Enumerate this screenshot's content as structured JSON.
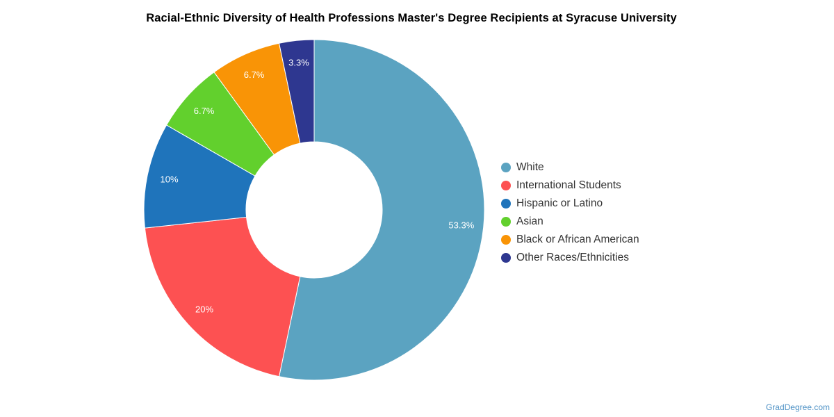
{
  "chart_data": {
    "type": "pie",
    "title": "Racial-Ethnic Diversity of Health Professions Master's Degree Recipients at Syracuse University",
    "legend_position": "right",
    "donut": true,
    "slices": [
      {
        "name": "White",
        "value": 53.3,
        "label": "53.3%",
        "color": "#5ba3c1"
      },
      {
        "name": "International Students",
        "value": 20,
        "label": "20%",
        "color": "#fd5152"
      },
      {
        "name": "Hispanic or Latino",
        "value": 10,
        "label": "10%",
        "color": "#1f74bb"
      },
      {
        "name": "Asian",
        "value": 6.7,
        "label": "6.7%",
        "color": "#62d02d"
      },
      {
        "name": "Black or African American",
        "value": 6.7,
        "label": "6.7%",
        "color": "#f99406"
      },
      {
        "name": "Other Races/Ethnicities",
        "value": 3.3,
        "label": "3.3%",
        "color": "#2e3790"
      }
    ]
  },
  "watermark": "GradDegree.com"
}
